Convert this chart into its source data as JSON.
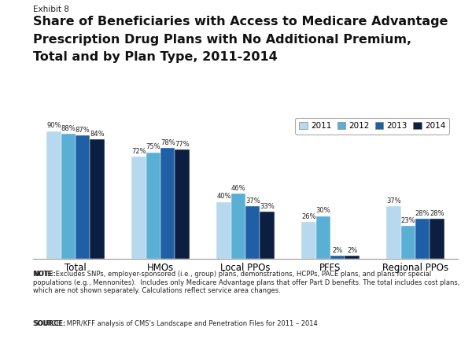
{
  "categories": [
    "Total",
    "HMOs",
    "Local PPOs",
    "PFFS",
    "Regional PPOs"
  ],
  "years": [
    "2011",
    "2012",
    "2013",
    "2014"
  ],
  "values": {
    "Total": [
      90,
      88,
      87,
      84
    ],
    "HMOs": [
      72,
      75,
      78,
      77
    ],
    "Local PPOs": [
      40,
      46,
      37,
      33
    ],
    "PFFS": [
      26,
      30,
      2,
      2
    ],
    "Regional PPOs": [
      37,
      23,
      28,
      28
    ]
  },
  "colors": [
    "#b8d8ee",
    "#5aafd4",
    "#1e5fa6",
    "#0d1f40"
  ],
  "exhibit_label": "Exhibit 8",
  "title_line1": "Share of Beneficiaries with Access to Medicare Advantage",
  "title_line2": "Prescription Drug Plans with No Additional Premium,",
  "title_line3": "Total and by Plan Type, 2011-2014",
  "legend_labels": [
    "2011",
    "2012",
    "2013",
    "2014"
  ],
  "note_bold": "NOTE:",
  "note_text": " Excludes SNPs, employer-sponsored (i.e., group) plans, demonstrations, HCPPs, PACE plans, and plans for special populations (e.g., Mennonites).  Includes only Medicare Advantage plans that offer Part D benefits. The total includes cost plans, which are not shown separately. Calculations reflect service area changes.",
  "source_bold": "SOURCE:",
  "source_text": "  MPR/KFF analysis of CMS’s Landscape and Penetration Files for 2011 – 2014",
  "ylim": [
    0,
    100
  ],
  "bar_width": 0.17,
  "bg_color": "#ffffff"
}
